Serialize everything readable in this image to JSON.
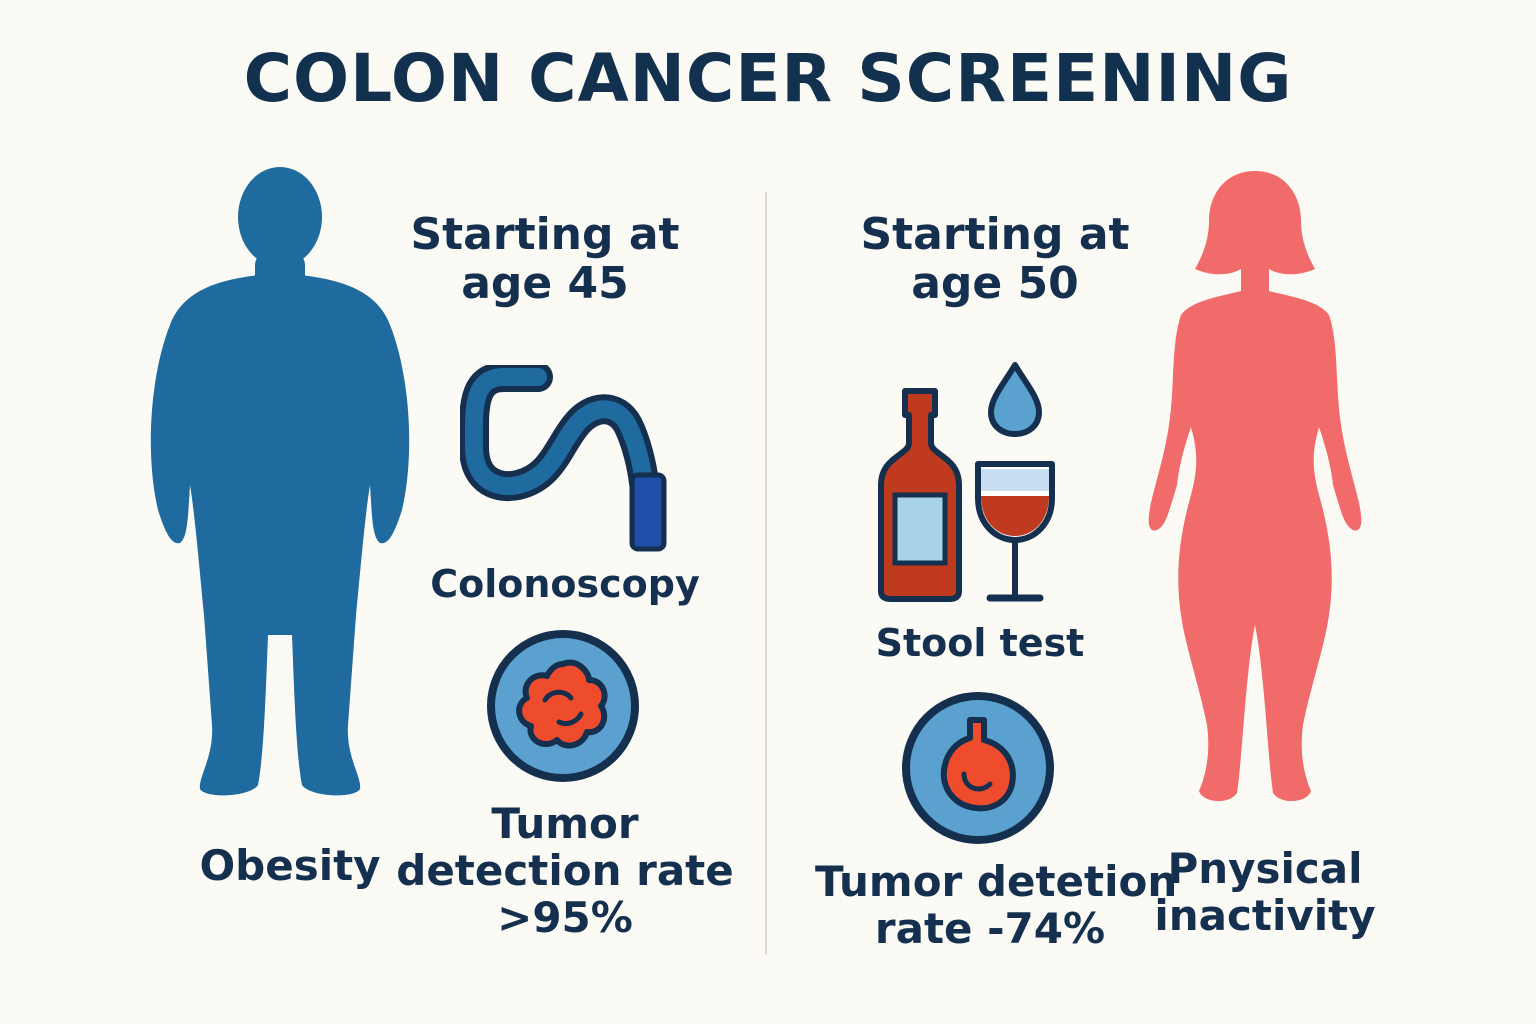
{
  "title": "COLON CANCER SCREENING",
  "left": {
    "start_line1": "Starting at",
    "start_line2": "age 45",
    "method": "Colonoscopy",
    "rate_line1": "Tumor",
    "rate_line2": "detection rate",
    "rate_line3": ">95%",
    "risk_factor": "Obesity",
    "figure_color": "#1f6a9e"
  },
  "right": {
    "start_line1": "Starting at",
    "start_line2": "age 50",
    "method": "Stool test",
    "rate_line1": "Tumor detetion",
    "rate_line2": "rate -74%",
    "risk_line1": "Pnysical",
    "risk_line2": "inactivity",
    "figure_color": "#f26b6b"
  },
  "icons": {
    "male_figure": "male-silhouette-icon",
    "female_figure": "female-silhouette-icon",
    "colonoscope": "colonoscope-icon",
    "tumor_left": "tumor-badge-icon",
    "bottle": "wine-bottle-icon",
    "glass": "wine-glass-icon",
    "drop": "water-drop-icon",
    "tumor_right": "tumor-badge-icon"
  },
  "colors": {
    "navy": "#15304f",
    "blue": "#1f6a9e",
    "light_blue": "#5aa1d0",
    "tumor_red": "#ee4c2c",
    "bottle_red": "#bf3a1f",
    "pink": "#f26b6b"
  }
}
